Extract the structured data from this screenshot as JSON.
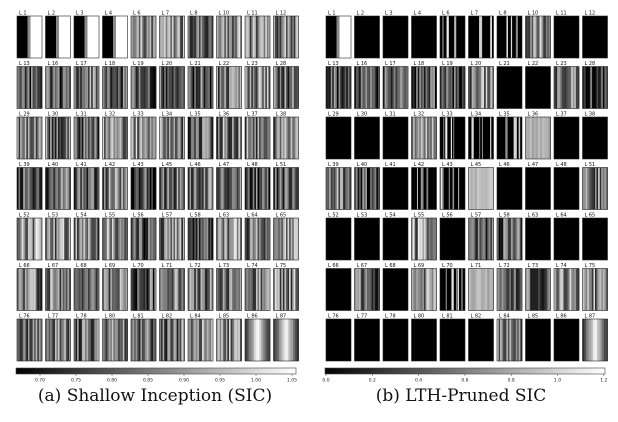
{
  "panels": [
    {
      "caption": "(a) Shallow Inception (SIC)",
      "tiles": [
        {
          "label": "L 1",
          "pattern": "halves",
          "tone": 0.05
        },
        {
          "label": "L 2",
          "pattern": "halves",
          "tone": 0.1
        },
        {
          "label": "L 3",
          "pattern": "halves",
          "tone": 0.05
        },
        {
          "label": "L 4",
          "pattern": "halves",
          "tone": 0.05
        },
        {
          "label": "L 6",
          "pattern": "stripes",
          "tone": 0.55
        },
        {
          "label": "L 7",
          "pattern": "stripes",
          "tone": 0.5
        },
        {
          "label": "L 8",
          "pattern": "stripes",
          "tone": 0.45
        },
        {
          "label": "L 10",
          "pattern": "stripes",
          "tone": 0.55
        },
        {
          "label": "L 11",
          "pattern": "stripes",
          "tone": 0.55
        },
        {
          "label": "L 12",
          "pattern": "stripes",
          "tone": 0.5
        },
        {
          "label": "L 13",
          "pattern": "stripes",
          "tone": 0.35
        },
        {
          "label": "L 16",
          "pattern": "stripes",
          "tone": 0.35
        },
        {
          "label": "L 17",
          "pattern": "stripes",
          "tone": 0.45
        },
        {
          "label": "L 18",
          "pattern": "stripes",
          "tone": 0.3
        },
        {
          "label": "L 19",
          "pattern": "stripes",
          "tone": 0.3
        },
        {
          "label": "L 20",
          "pattern": "stripes",
          "tone": 0.4
        },
        {
          "label": "L 21",
          "pattern": "stripes",
          "tone": 0.35
        },
        {
          "label": "L 22",
          "pattern": "stripes",
          "tone": 0.45
        },
        {
          "label": "L 23",
          "pattern": "stripes",
          "tone": 0.55
        },
        {
          "label": "L 28",
          "pattern": "stripes",
          "tone": 0.4
        },
        {
          "label": "L 29",
          "pattern": "stripes",
          "tone": 0.5
        },
        {
          "label": "L 30",
          "pattern": "stripes",
          "tone": 0.45
        },
        {
          "label": "L 31",
          "pattern": "stripes",
          "tone": 0.3
        },
        {
          "label": "L 32",
          "pattern": "stripes",
          "tone": 0.5
        },
        {
          "label": "L 33",
          "pattern": "stripes",
          "tone": 0.55
        },
        {
          "label": "L 34",
          "pattern": "stripes",
          "tone": 0.45
        },
        {
          "label": "L 35",
          "pattern": "stripes",
          "tone": 0.35
        },
        {
          "label": "L 36",
          "pattern": "stripes",
          "tone": 0.5
        },
        {
          "label": "L 37",
          "pattern": "stripes",
          "tone": 0.5
        },
        {
          "label": "L 38",
          "pattern": "stripes",
          "tone": 0.5
        },
        {
          "label": "L 39",
          "pattern": "stripes",
          "tone": 0.35
        },
        {
          "label": "L 40",
          "pattern": "stripes",
          "tone": 0.4
        },
        {
          "label": "L 41",
          "pattern": "stripes",
          "tone": 0.35
        },
        {
          "label": "L 42",
          "pattern": "stripes",
          "tone": 0.45
        },
        {
          "label": "L 43",
          "pattern": "stripes",
          "tone": 0.3
        },
        {
          "label": "L 45",
          "pattern": "stripes",
          "tone": 0.45
        },
        {
          "label": "L 46",
          "pattern": "stripes",
          "tone": 0.4
        },
        {
          "label": "L 47",
          "pattern": "stripes",
          "tone": 0.45
        },
        {
          "label": "L 48",
          "pattern": "stripes",
          "tone": 0.3
        },
        {
          "label": "L 51",
          "pattern": "stripes",
          "tone": 0.35
        },
        {
          "label": "L 52",
          "pattern": "stripes",
          "tone": 0.6
        },
        {
          "label": "L 53",
          "pattern": "stripes",
          "tone": 0.55
        },
        {
          "label": "L 54",
          "pattern": "stripes",
          "tone": 0.45
        },
        {
          "label": "L 55",
          "pattern": "stripes",
          "tone": 0.55
        },
        {
          "label": "L 56",
          "pattern": "stripes",
          "tone": 0.35
        },
        {
          "label": "L 57",
          "pattern": "stripes",
          "tone": 0.5
        },
        {
          "label": "L 58",
          "pattern": "stripes",
          "tone": 0.35
        },
        {
          "label": "L 63",
          "pattern": "stripes",
          "tone": 0.55
        },
        {
          "label": "L 64",
          "pattern": "stripes",
          "tone": 0.45
        },
        {
          "label": "L 65",
          "pattern": "stripes",
          "tone": 0.6
        },
        {
          "label": "L 66",
          "pattern": "stripes",
          "tone": 0.45
        },
        {
          "label": "L 67",
          "pattern": "stripes",
          "tone": 0.5
        },
        {
          "label": "L 68",
          "pattern": "stripes",
          "tone": 0.45
        },
        {
          "label": "L 69",
          "pattern": "stripes",
          "tone": 0.45
        },
        {
          "label": "L 70",
          "pattern": "stripes",
          "tone": 0.35
        },
        {
          "label": "L 71",
          "pattern": "stripes",
          "tone": 0.55
        },
        {
          "label": "L 72",
          "pattern": "stripes",
          "tone": 0.45
        },
        {
          "label": "L 73",
          "pattern": "stripes",
          "tone": 0.5
        },
        {
          "label": "L 74",
          "pattern": "stripes",
          "tone": 0.45
        },
        {
          "label": "L 75",
          "pattern": "stripes",
          "tone": 0.5
        },
        {
          "label": "L 76",
          "pattern": "stripes",
          "tone": 0.45
        },
        {
          "label": "L 77",
          "pattern": "stripes",
          "tone": 0.4
        },
        {
          "label": "L 78",
          "pattern": "stripes",
          "tone": 0.45
        },
        {
          "label": "L 80",
          "pattern": "stripes",
          "tone": 0.5
        },
        {
          "label": "L 81",
          "pattern": "stripes",
          "tone": 0.4
        },
        {
          "label": "L 82",
          "pattern": "stripes",
          "tone": 0.45
        },
        {
          "label": "L 84",
          "pattern": "stripes",
          "tone": 0.55
        },
        {
          "label": "L 85",
          "pattern": "stripes",
          "tone": 0.55
        },
        {
          "label": "L 86",
          "pattern": "center-bright",
          "tone": 0.6
        },
        {
          "label": "L 87",
          "pattern": "center-bright",
          "tone": 0.6
        }
      ],
      "colorbar": {
        "ticks": [
          "0.70",
          "0.75",
          "0.80",
          "0.85",
          "0.90",
          "0.95",
          "1.00",
          "1.05"
        ],
        "low": "#000000",
        "high": "#ffffff"
      }
    },
    {
      "caption": "(b) LTH-Pruned SIC",
      "tiles": [
        {
          "label": "L 1",
          "pattern": "halves",
          "tone": 0.05
        },
        {
          "label": "L 2",
          "pattern": "black",
          "tone": 0
        },
        {
          "label": "L 3",
          "pattern": "black",
          "tone": 0
        },
        {
          "label": "L 4",
          "pattern": "black",
          "tone": 0
        },
        {
          "label": "L 6",
          "pattern": "sparse",
          "tone": 0.2
        },
        {
          "label": "L 7",
          "pattern": "sparse",
          "tone": 0.15
        },
        {
          "label": "L 8",
          "pattern": "sparse",
          "tone": 0.2
        },
        {
          "label": "L 10",
          "pattern": "stripes",
          "tone": 0.5
        },
        {
          "label": "L 11",
          "pattern": "black",
          "tone": 0
        },
        {
          "label": "L 12",
          "pattern": "black",
          "tone": 0
        },
        {
          "label": "L 13",
          "pattern": "stripes",
          "tone": 0.35
        },
        {
          "label": "L 16",
          "pattern": "stripes",
          "tone": 0.3
        },
        {
          "label": "L 17",
          "pattern": "stripes",
          "tone": 0.3
        },
        {
          "label": "L 18",
          "pattern": "stripes",
          "tone": 0.3
        },
        {
          "label": "L 19",
          "pattern": "stripes",
          "tone": 0.35
        },
        {
          "label": "L 20",
          "pattern": "stripes",
          "tone": 0.5
        },
        {
          "label": "L 21",
          "pattern": "black",
          "tone": 0
        },
        {
          "label": "L 22",
          "pattern": "black",
          "tone": 0
        },
        {
          "label": "L 23",
          "pattern": "stripes",
          "tone": 0.45
        },
        {
          "label": "L 28",
          "pattern": "stripes",
          "tone": 0.3
        },
        {
          "label": "L 29",
          "pattern": "black",
          "tone": 0
        },
        {
          "label": "L 30",
          "pattern": "black",
          "tone": 0
        },
        {
          "label": "L 31",
          "pattern": "black",
          "tone": 0
        },
        {
          "label": "L 32",
          "pattern": "stripes",
          "tone": 0.45
        },
        {
          "label": "L 33",
          "pattern": "sparse",
          "tone": 0.25
        },
        {
          "label": "L 34",
          "pattern": "sparse",
          "tone": 0.15
        },
        {
          "label": "L 35",
          "pattern": "sparse",
          "tone": 0.2
        },
        {
          "label": "L 36",
          "pattern": "uniform-light",
          "tone": 0.7
        },
        {
          "label": "L 37",
          "pattern": "black",
          "tone": 0
        },
        {
          "label": "L 38",
          "pattern": "black",
          "tone": 0
        },
        {
          "label": "L 39",
          "pattern": "stripes",
          "tone": 0.45
        },
        {
          "label": "L 40",
          "pattern": "stripes",
          "tone": 0.35
        },
        {
          "label": "L 41",
          "pattern": "black",
          "tone": 0
        },
        {
          "label": "L 42",
          "pattern": "sparse",
          "tone": 0.15
        },
        {
          "label": "L 43",
          "pattern": "sparse",
          "tone": 0.15
        },
        {
          "label": "L 45",
          "pattern": "uniform-light",
          "tone": 0.75
        },
        {
          "label": "L 46",
          "pattern": "black",
          "tone": 0
        },
        {
          "label": "L 47",
          "pattern": "black",
          "tone": 0
        },
        {
          "label": "L 48",
          "pattern": "black",
          "tone": 0
        },
        {
          "label": "L 51",
          "pattern": "stripes",
          "tone": 0.5
        },
        {
          "label": "L 52",
          "pattern": "black",
          "tone": 0
        },
        {
          "label": "L 53",
          "pattern": "black",
          "tone": 0
        },
        {
          "label": "L 54",
          "pattern": "black",
          "tone": 0
        },
        {
          "label": "L 55",
          "pattern": "stripes",
          "tone": 0.55
        },
        {
          "label": "L 56",
          "pattern": "black",
          "tone": 0
        },
        {
          "label": "L 57",
          "pattern": "stripes",
          "tone": 0.35
        },
        {
          "label": "L 58",
          "pattern": "stripes",
          "tone": 0.35
        },
        {
          "label": "L 63",
          "pattern": "black",
          "tone": 0
        },
        {
          "label": "L 64",
          "pattern": "black",
          "tone": 0
        },
        {
          "label": "L 65",
          "pattern": "black",
          "tone": 0
        },
        {
          "label": "L 66",
          "pattern": "black",
          "tone": 0
        },
        {
          "label": "L 67",
          "pattern": "stripes",
          "tone": 0.4
        },
        {
          "label": "L 68",
          "pattern": "black",
          "tone": 0
        },
        {
          "label": "L 69",
          "pattern": "stripes",
          "tone": 0.5
        },
        {
          "label": "L 70",
          "pattern": "sparse",
          "tone": 0.15
        },
        {
          "label": "L 71",
          "pattern": "uniform-light",
          "tone": 0.7
        },
        {
          "label": "L 72",
          "pattern": "stripes",
          "tone": 0.4
        },
        {
          "label": "L 73",
          "pattern": "stripes",
          "tone": 0.35
        },
        {
          "label": "L 74",
          "pattern": "stripes",
          "tone": 0.55
        },
        {
          "label": "L 75",
          "pattern": "stripes",
          "tone": 0.5
        },
        {
          "label": "L 76",
          "pattern": "black",
          "tone": 0
        },
        {
          "label": "L 77",
          "pattern": "black",
          "tone": 0
        },
        {
          "label": "L 78",
          "pattern": "black",
          "tone": 0
        },
        {
          "label": "L 80",
          "pattern": "black",
          "tone": 0
        },
        {
          "label": "L 81",
          "pattern": "black",
          "tone": 0
        },
        {
          "label": "L 82",
          "pattern": "black",
          "tone": 0
        },
        {
          "label": "L 84",
          "pattern": "stripes",
          "tone": 0.5
        },
        {
          "label": "L 85",
          "pattern": "black",
          "tone": 0
        },
        {
          "label": "L 86",
          "pattern": "black",
          "tone": 0
        },
        {
          "label": "L 87",
          "pattern": "center-bright",
          "tone": 0.6
        }
      ],
      "colorbar": {
        "ticks": [
          "0.0",
          "0.2",
          "0.4",
          "0.6",
          "0.8",
          "1.0",
          "1.2"
        ],
        "low": "#000000",
        "high": "#ffffff"
      }
    }
  ]
}
